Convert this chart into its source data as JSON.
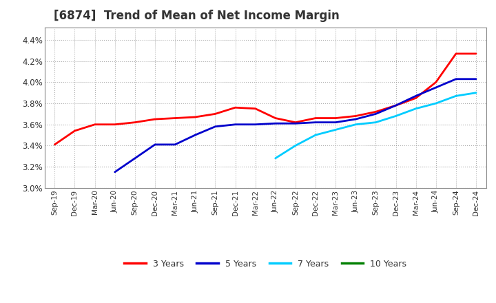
{
  "title": "[6874]  Trend of Mean of Net Income Margin",
  "x_labels": [
    "Sep-19",
    "Dec-19",
    "Mar-20",
    "Jun-20",
    "Sep-20",
    "Dec-20",
    "Mar-21",
    "Jun-21",
    "Sep-21",
    "Dec-21",
    "Mar-22",
    "Jun-22",
    "Sep-22",
    "Dec-22",
    "Mar-23",
    "Jun-23",
    "Sep-23",
    "Dec-23",
    "Mar-24",
    "Jun-24",
    "Sep-24",
    "Dec-24"
  ],
  "series_order": [
    "3 Years",
    "5 Years",
    "7 Years",
    "10 Years"
  ],
  "series": {
    "3 Years": {
      "color": "#ff0000",
      "data_x": [
        0,
        1,
        2,
        3,
        4,
        5,
        6,
        7,
        8,
        9,
        10,
        11,
        12,
        13,
        14,
        15,
        16,
        17,
        18,
        19,
        20,
        21
      ],
      "data_y": [
        3.41,
        3.54,
        3.6,
        3.6,
        3.62,
        3.65,
        3.66,
        3.67,
        3.7,
        3.76,
        3.75,
        3.66,
        3.62,
        3.66,
        3.66,
        3.68,
        3.72,
        3.78,
        3.85,
        4.0,
        4.27,
        4.27
      ]
    },
    "5 Years": {
      "color": "#0000cc",
      "data_x": [
        3,
        4,
        5,
        6,
        7,
        8,
        9,
        10,
        11,
        12,
        13,
        14,
        15,
        16,
        17,
        18,
        19,
        20,
        21
      ],
      "data_y": [
        3.15,
        3.28,
        3.41,
        3.41,
        3.5,
        3.58,
        3.6,
        3.6,
        3.61,
        3.61,
        3.62,
        3.62,
        3.65,
        3.7,
        3.78,
        3.87,
        3.95,
        4.03,
        4.03
      ]
    },
    "7 Years": {
      "color": "#00ccff",
      "data_x": [
        11,
        12,
        13,
        14,
        15,
        16,
        17,
        18,
        19,
        20,
        21
      ],
      "data_y": [
        3.28,
        3.4,
        3.5,
        3.55,
        3.6,
        3.62,
        3.68,
        3.75,
        3.8,
        3.87,
        3.9
      ]
    },
    "10 Years": {
      "color": "#008000",
      "data_x": [],
      "data_y": []
    }
  },
  "ylim": [
    3.0,
    4.52
  ],
  "yticks": [
    3.0,
    3.2,
    3.4,
    3.6,
    3.8,
    4.0,
    4.2,
    4.4
  ],
  "background_color": "#ffffff",
  "grid_color": "#999999",
  "title_fontsize": 12,
  "title_color": "#333333",
  "tick_color": "#333333",
  "legend_colors": [
    "#ff0000",
    "#0000cc",
    "#00ccff",
    "#008000"
  ],
  "legend_labels": [
    "3 Years",
    "5 Years",
    "7 Years",
    "10 Years"
  ]
}
